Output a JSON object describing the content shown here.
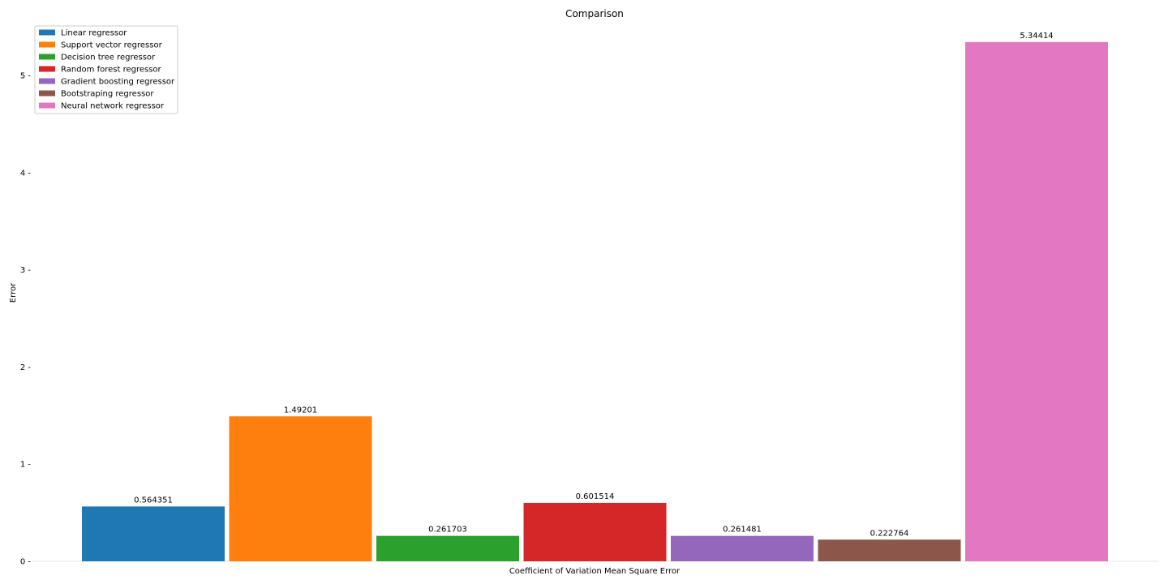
{
  "chart_data": {
    "type": "bar",
    "title": "Comparison",
    "xlabel": "Coefficient of Variation Mean Square Error",
    "ylabel": "Error",
    "categories": [
      "Coefficient of Variation Mean Square Error"
    ],
    "ylim": [
      0,
      5.6
    ],
    "yticks": [
      0,
      1,
      2,
      3,
      4,
      5
    ],
    "ytick_labels": [
      "0 -",
      "1 -",
      "2 -",
      "3 -",
      "4 -",
      "5 -"
    ],
    "grid": false,
    "legend_position": "top-left",
    "series": [
      {
        "name": "Linear regressor",
        "values": [
          0.564351
        ],
        "label": "0.564351",
        "color": "#1f77b4"
      },
      {
        "name": "Support vector regressor",
        "values": [
          1.49201
        ],
        "label": "1.49201",
        "color": "#ff7f0e"
      },
      {
        "name": "Decision tree regressor",
        "values": [
          0.261703
        ],
        "label": "0.261703",
        "color": "#2ca02c"
      },
      {
        "name": "Random forest regressor",
        "values": [
          0.601514
        ],
        "label": "0.601514",
        "color": "#d62728"
      },
      {
        "name": "Gradient boosting regressor",
        "values": [
          0.261481
        ],
        "label": "0.261481",
        "color": "#9467bd"
      },
      {
        "name": "Bootstraping regressor",
        "values": [
          0.222764
        ],
        "label": "0.222764",
        "color": "#8c564b"
      },
      {
        "name": "Neural network regressor",
        "values": [
          5.34414
        ],
        "label": "5.34414",
        "color": "#e377c2"
      }
    ]
  }
}
